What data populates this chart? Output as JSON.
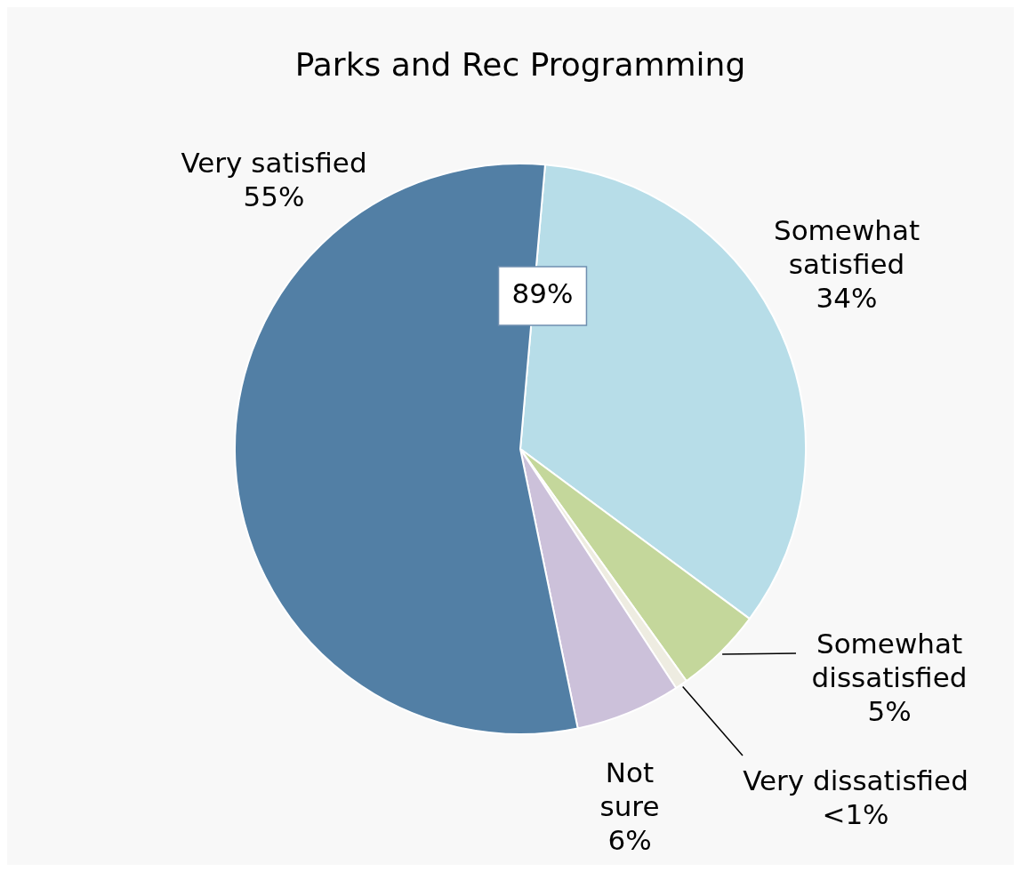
{
  "chart_data": {
    "type": "pie",
    "title": "Parks and Rec Programming",
    "categories": [
      "Somewhat satisfied",
      "Somewhat dissatisfied",
      "Very dissatisfied",
      "Not sure",
      "Very satisfied"
    ],
    "values": [
      34,
      5,
      0.7,
      6,
      55
    ],
    "value_labels": [
      "34%",
      "5%",
      "<1%",
      "6%",
      "55%"
    ],
    "colors": [
      "#b7dde8",
      "#c4d79b",
      "#eeece1",
      "#ccc1da",
      "#527fa5"
    ],
    "annotations": [
      "89%"
    ]
  }
}
